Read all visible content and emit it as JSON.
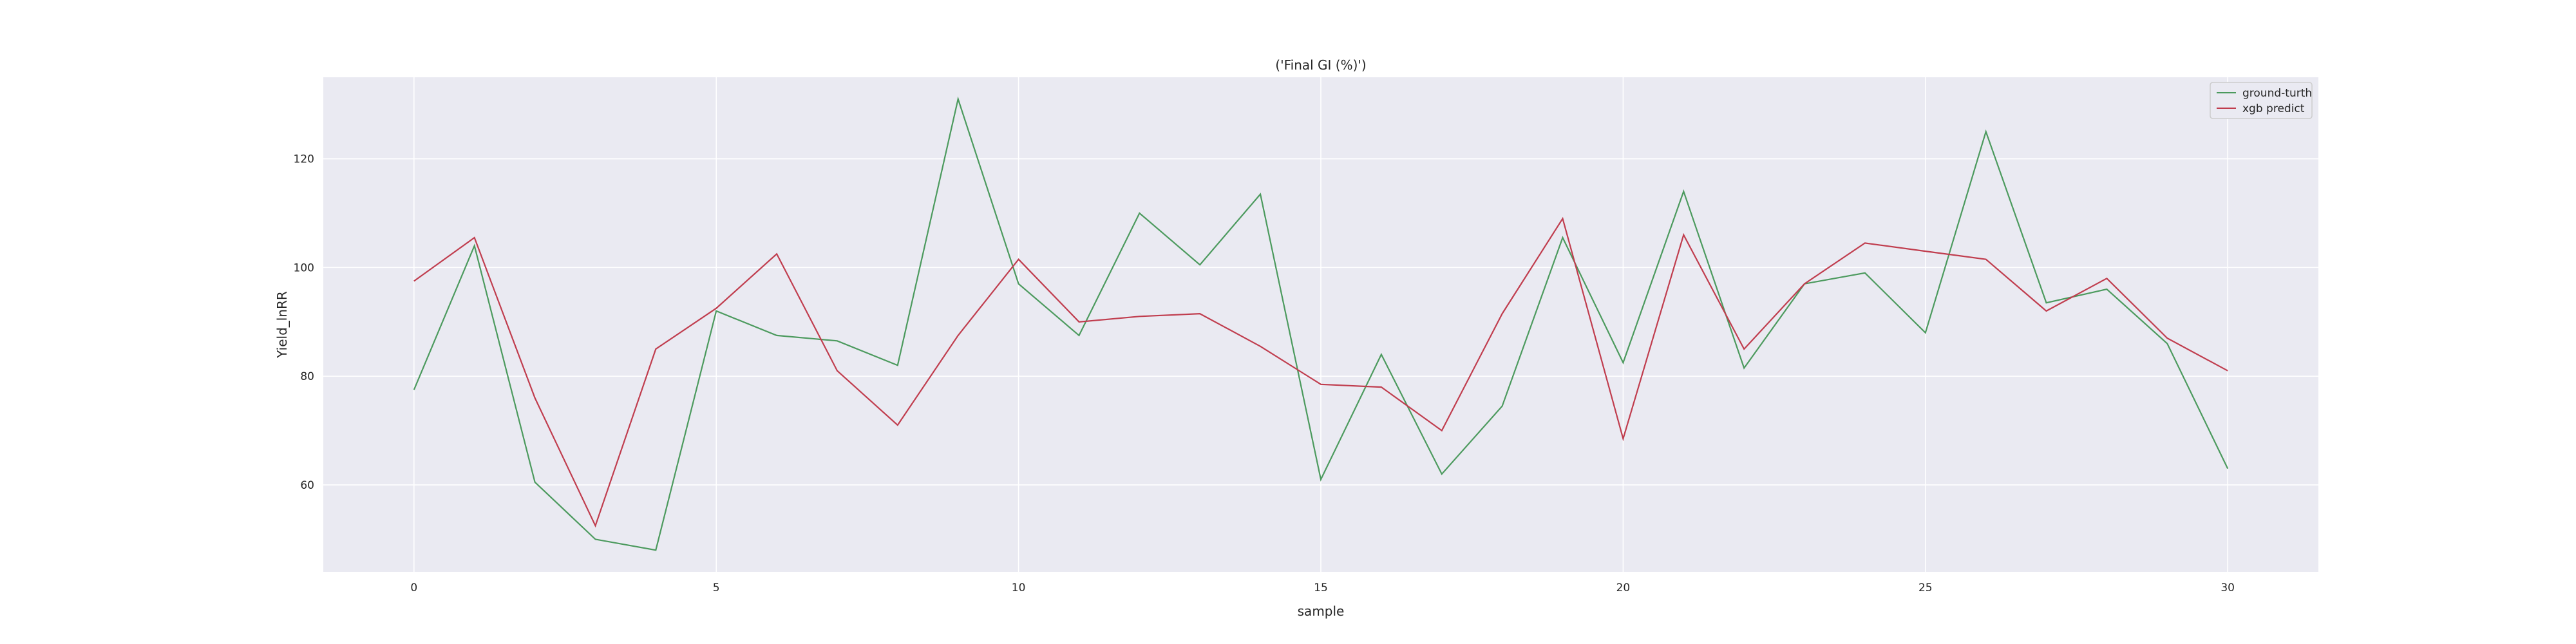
{
  "chart_data": {
    "type": "line",
    "title": "('Final GI (%)')",
    "xlabel": "sample",
    "ylabel": "Yield_lnRR",
    "x": [
      0,
      1,
      2,
      3,
      4,
      5,
      6,
      7,
      8,
      9,
      10,
      11,
      12,
      13,
      14,
      15,
      16,
      17,
      18,
      19,
      20,
      21,
      22,
      23,
      24,
      25,
      26,
      27,
      28,
      29,
      30
    ],
    "xlim": [
      -1.5,
      31.5
    ],
    "ylim": [
      44,
      135
    ],
    "xticks": [
      0,
      5,
      10,
      15,
      20,
      25,
      30
    ],
    "yticks": [
      60,
      80,
      100,
      120
    ],
    "grid": true,
    "legend_position": "top-right",
    "series": [
      {
        "name": "ground-turth",
        "color": "#4c9a5e",
        "values": [
          77.5,
          104,
          60.5,
          50,
          48,
          92,
          87.5,
          86.5,
          82,
          131,
          97,
          87.5,
          110,
          100.5,
          113.5,
          61,
          84,
          62,
          74.5,
          105.5,
          82.5,
          114,
          81.5,
          97,
          99,
          88,
          125,
          93.5,
          96,
          86,
          63
        ]
      },
      {
        "name": "xgb predict",
        "color": "#c03d4e",
        "values": [
          97.5,
          105.5,
          76,
          52.5,
          85,
          92.5,
          102.5,
          81,
          71,
          87.5,
          101.5,
          90,
          91,
          91.5,
          85.5,
          78.5,
          78,
          70,
          91.5,
          109,
          68.5,
          106,
          85,
          97,
          104.5,
          103,
          101.5,
          92,
          98,
          87,
          81
        ]
      }
    ]
  }
}
